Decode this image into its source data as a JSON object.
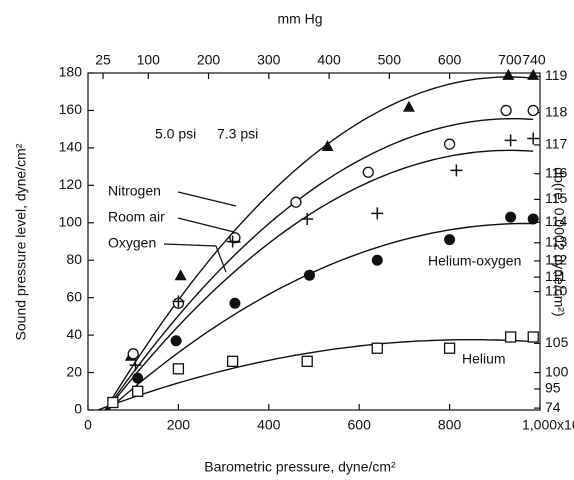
{
  "chart_data": {
    "type": "scatter",
    "x_label": "Barometric pressure, dyne/cm²",
    "y_label": "Sound pressure level, dyne/cm²",
    "x2_label": "mm Hg",
    "y2_label": "db(re. 0.0002 dyne/cm²)",
    "annotations": [
      "5.0 psi",
      "7.3 psi"
    ],
    "xlim": [
      0,
      1000
    ],
    "xticks": [
      0,
      200,
      400,
      600,
      800,
      {
        "value": 1000,
        "label": "1,000x10³"
      }
    ],
    "ylim": [
      0,
      180
    ],
    "yticks": [
      0,
      20,
      40,
      60,
      80,
      100,
      120,
      140,
      160,
      180
    ],
    "x2lim": [
      0,
      750
    ],
    "x2ticks": [
      25,
      100,
      200,
      300,
      400,
      500,
      600,
      700,
      740
    ],
    "y2_scale": "decibel",
    "y2_reference": 0.0002,
    "y2ticks": [
      74,
      95,
      100,
      105,
      110,
      111,
      112,
      113,
      114,
      115,
      116,
      117,
      118,
      119
    ],
    "series": [
      {
        "name": "Nitrogen",
        "marker": "triangle",
        "color": "#111",
        "x": [
          95,
          205,
          325,
          530,
          710,
          930,
          985
        ],
        "values": [
          29,
          72,
          92,
          141,
          162,
          179,
          179
        ]
      },
      {
        "name": "Room air",
        "marker": "circle-open",
        "color": "#111",
        "x": [
          100,
          200,
          325,
          460,
          620,
          800,
          925,
          985
        ],
        "values": [
          30,
          57,
          92,
          111,
          127,
          142,
          160,
          160
        ]
      },
      {
        "name": "Oxygen",
        "marker": "plus",
        "color": "#111",
        "x": [
          105,
          200,
          320,
          485,
          640,
          815,
          935,
          985
        ],
        "values": [
          24,
          58,
          90,
          102,
          105,
          128,
          144,
          145
        ]
      },
      {
        "name": "Helium-oxygen",
        "marker": "circle",
        "color": "#111",
        "x": [
          110,
          195,
          325,
          490,
          640,
          800,
          935,
          985
        ],
        "values": [
          17,
          37,
          57,
          72,
          80,
          91,
          103,
          102
        ]
      },
      {
        "name": "Helium",
        "marker": "square-open",
        "color": "#111",
        "x": [
          55,
          110,
          200,
          320,
          485,
          640,
          800,
          935,
          985
        ],
        "values": [
          4,
          10,
          22,
          26,
          26,
          33,
          33,
          39,
          39
        ]
      }
    ]
  }
}
